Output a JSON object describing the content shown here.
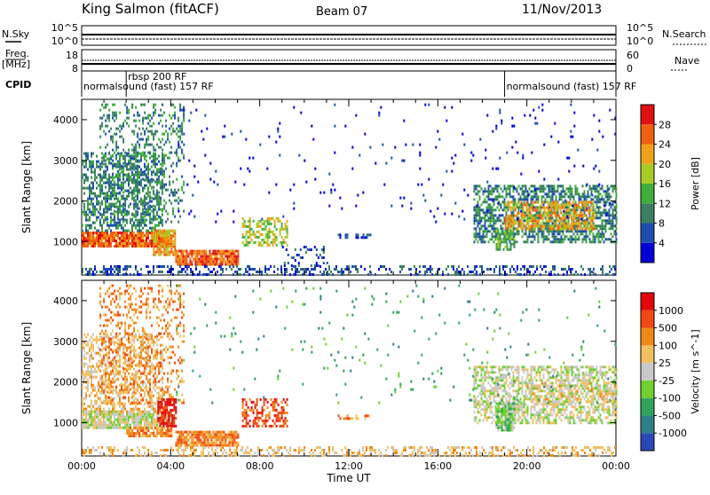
{
  "header": {
    "station": "King Salmon (fitACF)",
    "beam": "Beam 07",
    "date": "11/Nov/2013"
  },
  "aux_panels": {
    "nsky_label": "N.Sky",
    "nsky_ticks": [
      "10^5",
      "10^0"
    ],
    "nsearch_label": "N.Search",
    "nsearch_ticks": [
      "10^5",
      "10^0"
    ],
    "freq_label": "Freq.",
    "freq_unit": "[MHz]",
    "freq_ticks": [
      "18",
      "8"
    ],
    "nave_label": "Nave",
    "nave_ticks": [
      "60",
      "0"
    ],
    "cpid_label": "CPID",
    "cpid_segments": [
      {
        "label": "normalsound (fast) 157 RF",
        "start_hour": 0,
        "end_hour": 2
      },
      {
        "label": "rbsp 200 RF",
        "start_hour": 2,
        "end_hour": 19
      },
      {
        "label": "normalsound (fast) 157 RF",
        "start_hour": 19,
        "end_hour": 24
      }
    ]
  },
  "chart_data": [
    {
      "type": "heatmap",
      "panel": "power",
      "ylabel": "Slant Range [km]",
      "xlabel": "",
      "x_range_hours": [
        0,
        24
      ],
      "ylim": [
        180,
        4500
      ],
      "yticks": [
        1000,
        2000,
        3000,
        4000
      ],
      "colorbar": {
        "label": "Power [dB]",
        "ticks": [
          4,
          8,
          12,
          16,
          20,
          24,
          28
        ],
        "colors": [
          "#0000d8",
          "#1e4fb0",
          "#3a8060",
          "#3fae3a",
          "#a8cc26",
          "#f0a018",
          "#f06010",
          "#e01010"
        ]
      },
      "regions": [
        {
          "t0": 0.0,
          "t1": 4.0,
          "r0": 900,
          "r1": 1250,
          "level": 6,
          "density": 0.9
        },
        {
          "t0": 0.0,
          "t1": 3.6,
          "r0": 1250,
          "r1": 3200,
          "level": 2,
          "density": 0.5
        },
        {
          "t0": 0.8,
          "t1": 4.6,
          "r0": 1500,
          "r1": 4400,
          "level": 2,
          "density": 0.25
        },
        {
          "t0": 3.2,
          "t1": 4.2,
          "r0": 700,
          "r1": 1300,
          "level": 5,
          "density": 0.8
        },
        {
          "t0": 4.2,
          "t1": 7.0,
          "r0": 450,
          "r1": 800,
          "level": 6,
          "density": 0.9
        },
        {
          "t0": 7.2,
          "t1": 9.2,
          "r0": 900,
          "r1": 1600,
          "level": 4,
          "density": 0.5
        },
        {
          "t0": 0.0,
          "t1": 24.0,
          "r0": 200,
          "r1": 420,
          "level": 1,
          "density": 0.35
        },
        {
          "t0": 9.0,
          "t1": 11.0,
          "r0": 400,
          "r1": 900,
          "level": 1,
          "density": 0.2
        },
        {
          "t0": 11.5,
          "t1": 13.0,
          "r0": 1100,
          "r1": 1200,
          "level": 1,
          "density": 0.5
        },
        {
          "t0": 17.6,
          "t1": 24.0,
          "r0": 1000,
          "r1": 2400,
          "level": 2,
          "density": 0.6
        },
        {
          "t0": 19.0,
          "t1": 23.0,
          "r0": 1300,
          "r1": 2000,
          "level": 5,
          "density": 0.6
        },
        {
          "t0": 18.6,
          "t1": 19.4,
          "r0": 800,
          "r1": 1300,
          "level": 3,
          "density": 0.6
        },
        {
          "t0": 4.0,
          "t1": 24.0,
          "r0": 1500,
          "r1": 4400,
          "level": 0,
          "density": 0.02
        }
      ]
    },
    {
      "type": "heatmap",
      "panel": "velocity",
      "ylabel": "Slant Range [km]",
      "xlabel": "Time UT",
      "x_range_hours": [
        0,
        24
      ],
      "xticks": [
        "00:00",
        "04:00",
        "08:00",
        "12:00",
        "16:00",
        "20:00",
        "00:00"
      ],
      "ylim": [
        180,
        4500
      ],
      "yticks": [
        1000,
        2000,
        3000,
        4000
      ],
      "colorbar": {
        "label": "Velocity [m s^-1]",
        "ticks": [
          "1000",
          "500",
          "100",
          "25",
          "-25",
          "-100",
          "-500",
          "-1000"
        ],
        "colors": [
          "#2a48b8",
          "#2e7f88",
          "#31a35c",
          "#6fd030",
          "#c8c8c8",
          "#f2c060",
          "#f08818",
          "#f04810",
          "#e00808"
        ]
      },
      "regions": [
        {
          "t0": 0.0,
          "t1": 4.0,
          "r0": 900,
          "r1": 1300,
          "level": 4,
          "density": 0.9
        },
        {
          "t0": 0.0,
          "t1": 3.6,
          "r0": 1300,
          "r1": 3200,
          "level": 5,
          "density": 0.45
        },
        {
          "t0": 0.8,
          "t1": 4.6,
          "r0": 1500,
          "r1": 4400,
          "level": 6,
          "density": 0.25
        },
        {
          "t0": 3.4,
          "t1": 4.2,
          "r0": 900,
          "r1": 1600,
          "level": 8,
          "density": 0.7
        },
        {
          "t0": 2.0,
          "t1": 4.0,
          "r0": 650,
          "r1": 900,
          "level": 6,
          "density": 0.8
        },
        {
          "t0": 4.2,
          "t1": 7.0,
          "r0": 450,
          "r1": 800,
          "level": 6,
          "density": 0.85
        },
        {
          "t0": 7.2,
          "t1": 9.2,
          "r0": 900,
          "r1": 1600,
          "level": 7,
          "density": 0.5
        },
        {
          "t0": 0.0,
          "t1": 24.0,
          "r0": 200,
          "r1": 420,
          "level": 5,
          "density": 0.35
        },
        {
          "t0": 11.5,
          "t1": 13.0,
          "r0": 1100,
          "r1": 1200,
          "level": 6,
          "density": 0.5
        },
        {
          "t0": 17.6,
          "t1": 24.0,
          "r0": 1000,
          "r1": 2400,
          "level": 4,
          "density": 0.6
        },
        {
          "t0": 18.6,
          "t1": 19.4,
          "r0": 800,
          "r1": 1500,
          "level": 3,
          "density": 0.7
        },
        {
          "t0": 20.0,
          "t1": 24.0,
          "r0": 1500,
          "r1": 2000,
          "level": 5,
          "density": 0.3
        },
        {
          "t0": 4.0,
          "t1": 24.0,
          "r0": 1500,
          "r1": 4400,
          "level": 2,
          "density": 0.02
        }
      ]
    }
  ]
}
